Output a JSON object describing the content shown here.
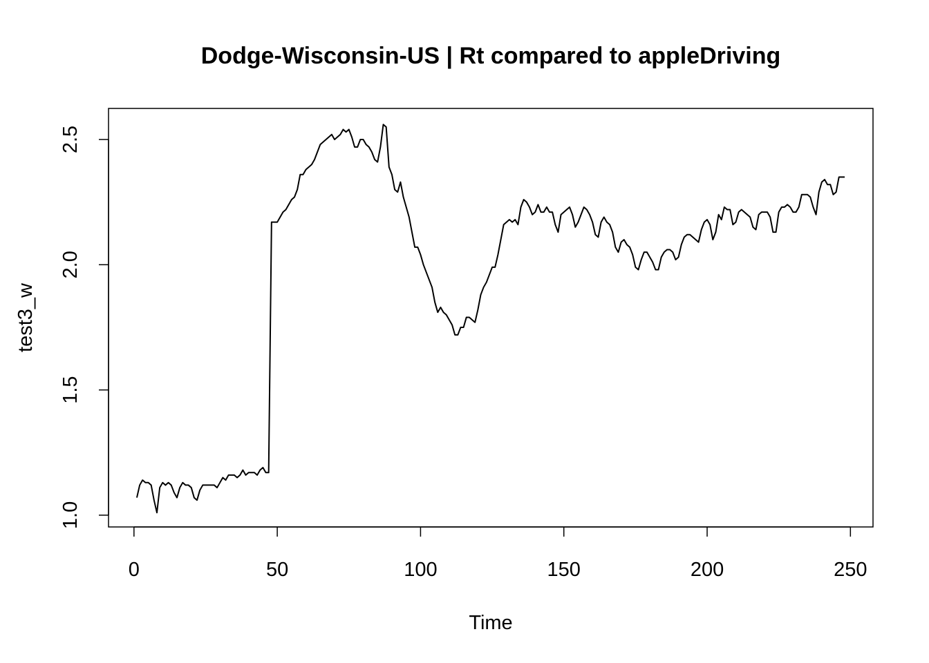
{
  "chart_data": {
    "type": "line",
    "title": "Dodge-Wisconsin-US | Rt compared to appleDriving",
    "x_label": "Time",
    "y_label": "test3_w",
    "x": [
      1,
      2,
      3,
      4,
      5,
      6,
      7,
      8,
      9,
      10,
      11,
      12,
      13,
      14,
      15,
      16,
      17,
      18,
      19,
      20,
      21,
      22,
      23,
      24,
      25,
      26,
      27,
      28,
      29,
      30,
      31,
      32,
      33,
      34,
      35,
      36,
      37,
      38,
      39,
      40,
      41,
      42,
      43,
      44,
      45,
      46,
      47,
      48,
      49,
      50,
      51,
      52,
      53,
      54,
      55,
      56,
      57,
      58,
      59,
      60,
      61,
      62,
      63,
      64,
      65,
      66,
      67,
      68,
      69,
      70,
      71,
      72,
      73,
      74,
      75,
      76,
      77,
      78,
      79,
      80,
      81,
      82,
      83,
      84,
      85,
      86,
      87,
      88,
      89,
      90,
      91,
      92,
      93,
      94,
      95,
      96,
      97,
      98,
      99,
      100,
      101,
      102,
      103,
      104,
      105,
      106,
      107,
      108,
      109,
      110,
      111,
      112,
      113,
      114,
      115,
      116,
      117,
      118,
      119,
      120,
      121,
      122,
      123,
      124,
      125,
      126,
      127,
      128,
      129,
      130,
      131,
      132,
      133,
      134,
      135,
      136,
      137,
      138,
      139,
      140,
      141,
      142,
      143,
      144,
      145,
      146,
      147,
      148,
      149,
      150,
      151,
      152,
      153,
      154,
      155,
      156,
      157,
      158,
      159,
      160,
      161,
      162,
      163,
      164,
      165,
      166,
      167,
      168,
      169,
      170,
      171,
      172,
      173,
      174,
      175,
      176,
      177,
      178,
      179,
      180,
      181,
      182,
      183,
      184,
      185,
      186,
      187,
      188,
      189,
      190,
      191,
      192,
      193,
      194,
      195,
      196,
      197,
      198,
      199,
      200,
      201,
      202,
      203,
      204,
      205,
      206,
      207,
      208,
      209,
      210,
      211,
      212,
      213,
      214,
      215,
      216,
      217,
      218,
      219,
      220,
      221,
      222,
      223,
      224,
      225,
      226,
      227,
      228,
      229,
      230,
      231,
      232,
      233,
      234,
      235,
      236,
      237,
      238,
      239,
      240,
      241,
      242,
      243,
      244,
      245,
      246,
      247,
      248
    ],
    "series": [
      {
        "color": "#000000",
        "values": [
          1.07,
          1.12,
          1.14,
          1.13,
          1.13,
          1.12,
          1.06,
          1.01,
          1.11,
          1.13,
          1.12,
          1.13,
          1.12,
          1.09,
          1.07,
          1.11,
          1.13,
          1.12,
          1.12,
          1.11,
          1.07,
          1.06,
          1.1,
          1.12,
          1.12,
          1.12,
          1.12,
          1.12,
          1.11,
          1.13,
          1.15,
          1.14,
          1.16,
          1.16,
          1.16,
          1.15,
          1.16,
          1.18,
          1.16,
          1.17,
          1.17,
          1.17,
          1.16,
          1.18,
          1.19,
          1.17,
          1.17,
          2.17,
          2.17,
          2.17,
          2.19,
          2.21,
          2.22,
          2.24,
          2.26,
          2.27,
          2.3,
          2.36,
          2.36,
          2.38,
          2.39,
          2.4,
          2.42,
          2.45,
          2.48,
          2.49,
          2.5,
          2.51,
          2.52,
          2.5,
          2.51,
          2.52,
          2.54,
          2.53,
          2.54,
          2.51,
          2.47,
          2.47,
          2.5,
          2.5,
          2.48,
          2.47,
          2.45,
          2.42,
          2.41,
          2.47,
          2.56,
          2.55,
          2.39,
          2.36,
          2.3,
          2.29,
          2.33,
          2.27,
          2.23,
          2.19,
          2.13,
          2.07,
          2.07,
          2.04,
          2.0,
          1.97,
          1.94,
          1.91,
          1.85,
          1.81,
          1.83,
          1.81,
          1.8,
          1.78,
          1.76,
          1.72,
          1.72,
          1.75,
          1.75,
          1.79,
          1.79,
          1.78,
          1.77,
          1.82,
          1.88,
          1.91,
          1.93,
          1.96,
          1.99,
          1.99,
          2.04,
          2.1,
          2.16,
          2.17,
          2.18,
          2.17,
          2.18,
          2.16,
          2.23,
          2.26,
          2.25,
          2.23,
          2.2,
          2.21,
          2.24,
          2.21,
          2.21,
          2.23,
          2.21,
          2.21,
          2.16,
          2.13,
          2.2,
          2.21,
          2.22,
          2.23,
          2.2,
          2.15,
          2.17,
          2.2,
          2.23,
          2.22,
          2.2,
          2.17,
          2.12,
          2.11,
          2.17,
          2.19,
          2.17,
          2.16,
          2.13,
          2.07,
          2.05,
          2.09,
          2.1,
          2.08,
          2.07,
          2.04,
          1.99,
          1.98,
          2.02,
          2.05,
          2.05,
          2.03,
          2.01,
          1.98,
          1.98,
          2.03,
          2.05,
          2.06,
          2.06,
          2.05,
          2.02,
          2.03,
          2.08,
          2.11,
          2.12,
          2.12,
          2.11,
          2.1,
          2.09,
          2.14,
          2.17,
          2.18,
          2.16,
          2.1,
          2.13,
          2.2,
          2.18,
          2.23,
          2.22,
          2.22,
          2.16,
          2.17,
          2.21,
          2.22,
          2.21,
          2.2,
          2.19,
          2.15,
          2.14,
          2.2,
          2.21,
          2.21,
          2.21,
          2.19,
          2.13,
          2.13,
          2.21,
          2.23,
          2.23,
          2.24,
          2.23,
          2.21,
          2.21,
          2.23,
          2.28,
          2.28,
          2.28,
          2.27,
          2.23,
          2.2,
          2.29,
          2.33,
          2.34,
          2.32,
          2.32,
          2.28,
          2.29,
          2.35,
          2.35,
          2.35
        ]
      }
    ],
    "xlim": [
      -8.88,
      257.88
    ],
    "xticks": [
      0,
      50,
      100,
      150,
      200,
      250
    ],
    "ylim": [
      0.953,
      2.624
    ],
    "yticks": [
      {
        "value": 1,
        "label": "1.0"
      },
      1.5,
      {
        "value": 2,
        "label": "2.0"
      },
      2.5
    ]
  }
}
